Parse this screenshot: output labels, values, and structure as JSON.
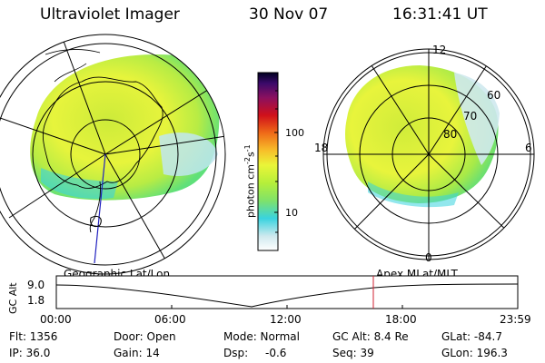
{
  "header": {
    "title": "Ultraviolet Imager",
    "date": "30 Nov 07",
    "time": "16:31:41 UT"
  },
  "colorbar": {
    "unit_prefix": "photon cm",
    "unit_sup1": "-2",
    "unit_mid": "s",
    "unit_sup2": "-1",
    "tick_100": "100",
    "tick_10": "10",
    "stops": [
      "#ffffff",
      "#cfe9ee",
      "#39d3df",
      "#7fe26a",
      "#b6ef3a",
      "#eaf538",
      "#f7c02a",
      "#ef6b18",
      "#d0101a",
      "#8a1060",
      "#3a0a6a",
      "#000020"
    ]
  },
  "left_map": {
    "caption": "Geographic Lat/Lon"
  },
  "right_map": {
    "caption": "Apex MLat/MLT",
    "mlt_top": "12",
    "mlt_bottom": "0",
    "mlt_left": "18",
    "mlt_right": "6",
    "lat_60": "60",
    "lat_70": "70",
    "lat_80": "80"
  },
  "timeline": {
    "ylabel": "GC Alt",
    "y_top": "9.0",
    "y_bottom": "1.8",
    "x_ticks": [
      "00:00",
      "06:00",
      "12:00",
      "18:00",
      "23:59"
    ],
    "marker_color": "#d02030"
  },
  "info": {
    "row1": {
      "flt": "Flt: 1356",
      "door": "Door: Open",
      "mode": "Mode: Normal",
      "gcalt": "GC Alt: 8.4 Re",
      "glat": "GLat: -84.7"
    },
    "row2": {
      "ip": "IP: 36.0",
      "gain": "Gain: 14",
      "dsp": "Dsp:",
      "dsp_val": "-0.6",
      "seq": "Seq: 39",
      "glon": "GLon: 196.3"
    }
  }
}
